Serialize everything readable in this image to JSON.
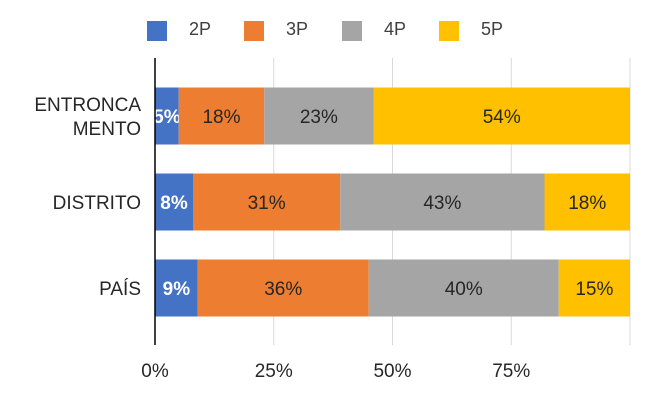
{
  "chart_data": {
    "type": "bar",
    "orientation": "horizontal",
    "stacked": true,
    "percent_stacked": true,
    "categories": [
      "ENTRONCAMENTO",
      "DISTRITO",
      "PAÍS"
    ],
    "category_label_lines": [
      [
        "ENTRONCA",
        "MENTO"
      ],
      [
        "DISTRITO"
      ],
      [
        "PAÍS"
      ]
    ],
    "series": [
      {
        "name": "2P",
        "color": "#4472c4",
        "values": [
          5,
          8,
          9
        ],
        "labels": [
          "5%",
          "8%",
          "9%"
        ]
      },
      {
        "name": "3P",
        "color": "#ed7d31",
        "values": [
          18,
          31,
          36
        ],
        "labels": [
          "18%",
          "31%",
          "36%"
        ]
      },
      {
        "name": "4P",
        "color": "#a5a5a5",
        "values": [
          23,
          43,
          40
        ],
        "labels": [
          "23%",
          "43%",
          "40%"
        ]
      },
      {
        "name": "5P",
        "color": "#ffc000",
        "values": [
          54,
          18,
          15
        ],
        "labels": [
          "54%",
          "18%",
          "15%"
        ]
      }
    ],
    "xlim": [
      0,
      100
    ],
    "x_ticks": [
      0,
      25,
      50,
      75,
      100
    ],
    "x_tick_labels": [
      "0%",
      "25%",
      "50%",
      "75%",
      ""
    ],
    "grid": true,
    "legend_position": "top"
  }
}
